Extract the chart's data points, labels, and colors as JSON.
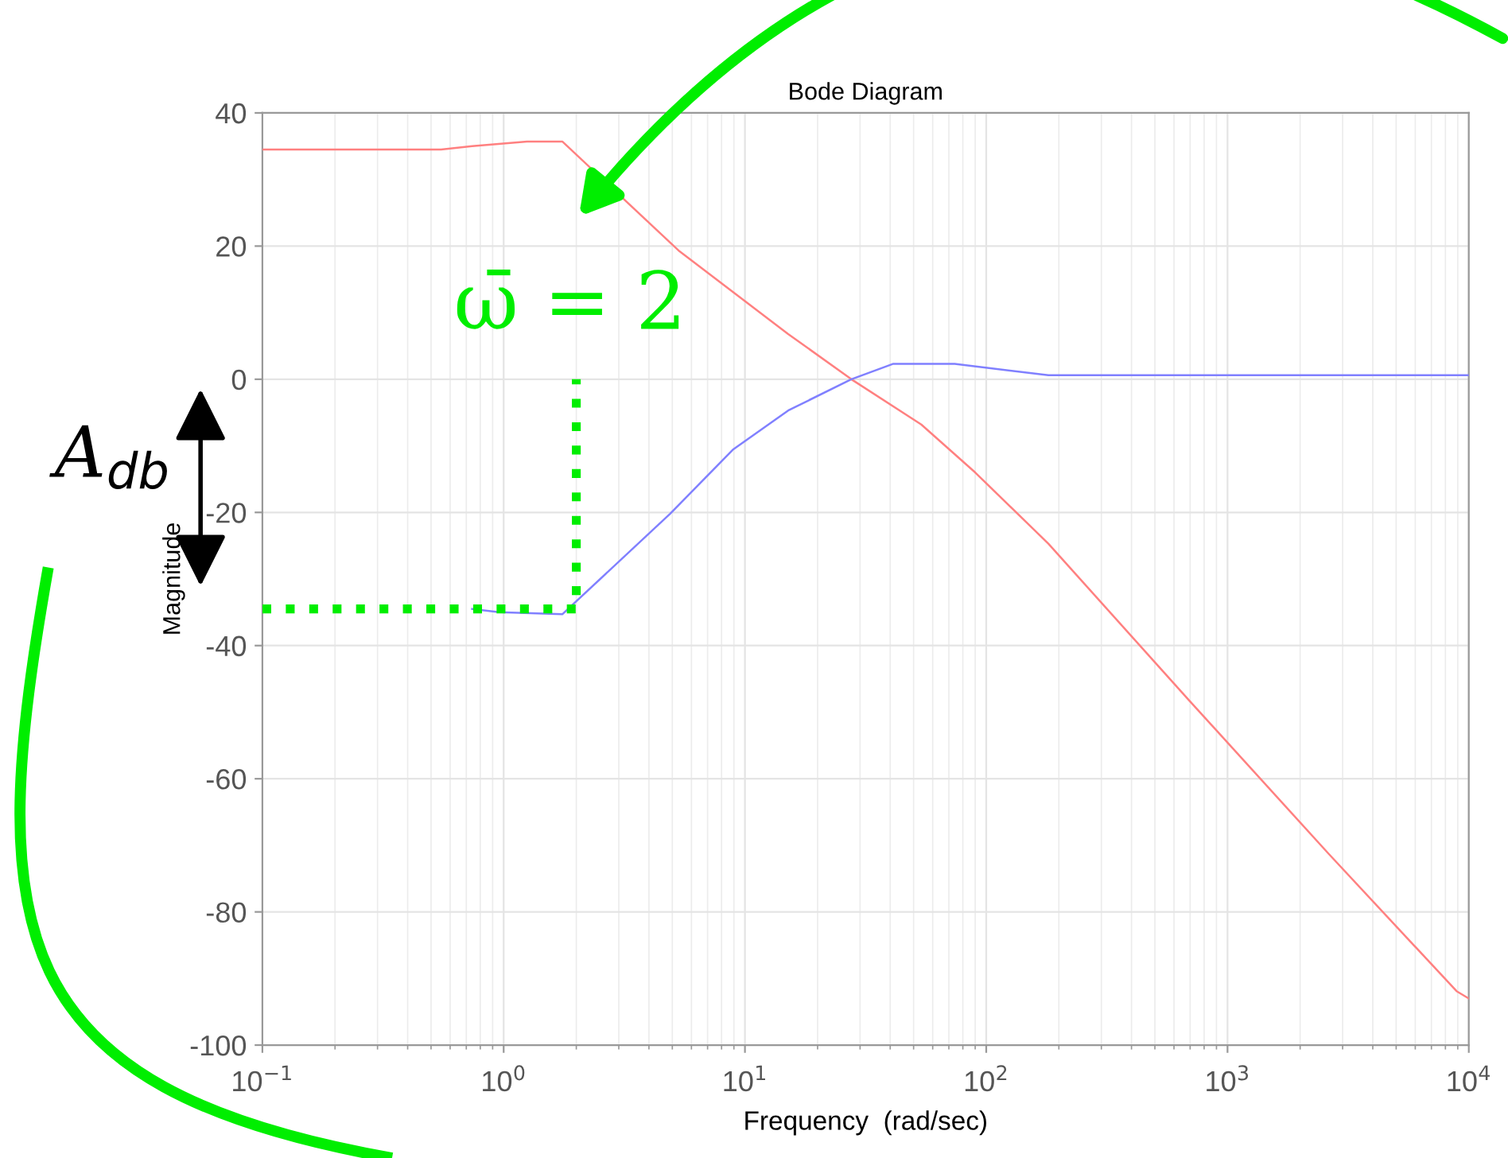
{
  "chart_data": {
    "type": "line",
    "title": "Bode Diagram",
    "xlabel": "Frequency  (rad/sec)",
    "ylabel": "Magnitude",
    "log": "x",
    "grid": true,
    "xlim": [
      0.1,
      10000
    ],
    "ylim": [
      -100,
      40
    ],
    "xticks": [
      {
        "value": 0.1,
        "label": "10$^{−1}$"
      },
      {
        "value": 1,
        "label": "10$^{0}$"
      },
      {
        "value": 10,
        "label": "10$^{1}$"
      },
      {
        "value": 100,
        "label": "10$^{2}$"
      },
      {
        "value": 1000,
        "label": "10$^{3}$"
      },
      {
        "value": 10000,
        "label": "10$^{4}$"
      }
    ],
    "yticks": [
      -100,
      -80,
      -60,
      -40,
      -20,
      0,
      20,
      40
    ],
    "series": [
      {
        "color": "#ff8080",
        "x": [
          0.1,
          0.55,
          0.74,
          1.25,
          1.75,
          5.36,
          15.1,
          27.6,
          53.8,
          90,
          181,
          692,
          2630,
          8900,
          10000
        ],
        "values": [
          34.5,
          34.5,
          35,
          35.7,
          35.7,
          19.2,
          6.8,
          0,
          -6.8,
          -14,
          -24.7,
          -48.2,
          -71.3,
          -91.9,
          -93
        ]
      },
      {
        "color": "#8080ff",
        "x": [
          0.74,
          0.96,
          1.75,
          4.9,
          8.9,
          15.1,
          27.6,
          41,
          74,
          181,
          10000
        ],
        "values": [
          -34.5,
          -35,
          -35.3,
          -20.2,
          -10.6,
          -4.7,
          0,
          2.3,
          2.3,
          0.6,
          0.6
        ]
      },
      {
        "color": "#00ee00",
        "line_style": "dotted",
        "x": [
          0.1,
          2,
          2
        ],
        "values": [
          -34.5,
          -34.5,
          0
        ]
      }
    ],
    "annotations": [
      "ω̄ = 2",
      "A$_{db}$"
    ]
  }
}
